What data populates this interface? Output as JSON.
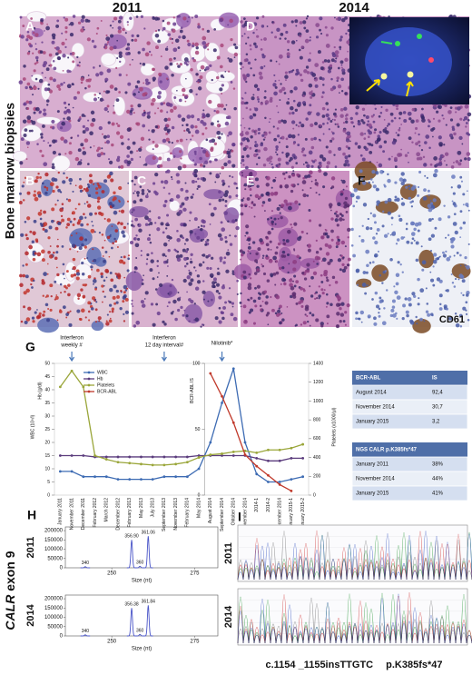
{
  "header": {
    "year_left": "2011",
    "year_right": "2014"
  },
  "side_labels": {
    "biopsies": "Bone marrow biopsies",
    "calr_gene": "CALR",
    "calr_exon": "exon 9"
  },
  "panel_labels": [
    "A",
    "B",
    "C",
    "D",
    "E",
    "F",
    "G",
    "H",
    "I"
  ],
  "stain": "CD61",
  "chart_data": [
    {
      "type": "line",
      "categories": [
        "January 2011",
        "November 2011",
        "December 2011",
        "February 2012",
        "March 2012",
        "December 2012",
        "February 2013",
        "May 2013",
        "July 2013",
        "September 2013",
        "November 2013",
        "February 2014",
        "May 2014",
        "August 2014",
        "September 2014",
        "Oktober 2014",
        "November 2014",
        "2014-1",
        "2014-2",
        "December 2014",
        "January 2015-1",
        "January 2015-2"
      ],
      "series": [
        {
          "name": "WBC",
          "color": "#3d6bb3",
          "values": [
            9,
            9,
            7,
            7,
            7,
            6,
            6,
            6,
            6,
            7,
            7,
            7,
            10,
            20,
            35,
            48,
            20,
            8,
            5,
            5,
            6,
            7
          ]
        },
        {
          "name": "Hb",
          "color": "#5b3c7d",
          "values": [
            15,
            15,
            15,
            14.5,
            14.5,
            14.5,
            14.5,
            14.5,
            14.5,
            14.5,
            14.5,
            14.5,
            15,
            15,
            15,
            15,
            15,
            14,
            13,
            13,
            14,
            14
          ]
        },
        {
          "name": "Platelets",
          "color": "#9aa63a",
          "axis": "y2",
          "values": [
            1150,
            1320,
            1150,
            420,
            380,
            350,
            340,
            330,
            320,
            320,
            330,
            350,
            400,
            430,
            440,
            460,
            470,
            450,
            480,
            480,
            500,
            540
          ]
        },
        {
          "name": "BCR-ABL",
          "color": "#c0392b",
          "axis": "y3",
          "values": [
            null,
            null,
            null,
            null,
            null,
            null,
            null,
            null,
            null,
            null,
            null,
            null,
            null,
            92.4,
            75,
            55,
            30.7,
            22,
            15,
            8,
            3.2,
            null
          ]
        }
      ],
      "ylabels": [
        "WBC (10⁹/l)",
        "Hb (g/dl)"
      ],
      "y2label": "Platelets (x1000/µl)",
      "y3label": "BCR-ABL IS",
      "ylim": [
        0,
        50
      ],
      "yticks": [
        0,
        5,
        10,
        15,
        20,
        25,
        30,
        35,
        40,
        45,
        50
      ],
      "y2lim": [
        0,
        1400
      ],
      "y2ticks": [
        0,
        200,
        400,
        600,
        800,
        1000,
        1200,
        1400
      ],
      "y3lim": [
        0,
        100
      ],
      "y3ticks": [
        0,
        50,
        100
      ],
      "annotations": [
        [
          "Interferon",
          "weekly #"
        ],
        [
          "Interferon",
          "12 day interval#"
        ],
        [
          "Nilotinib*"
        ]
      ],
      "legend": "upper left"
    },
    {
      "type": "line",
      "row": "2011",
      "xlabel": "Size (nt)",
      "xlim": [
        236,
        282
      ],
      "xticks": [
        250,
        275
      ],
      "ylim": [
        0,
        220000
      ],
      "yticks": [
        0,
        50000,
        100000,
        150000,
        200000
      ],
      "peaks": [
        {
          "label": "340",
          "x": 242,
          "height": 6000
        },
        {
          "label": "356.90",
          "x": 256,
          "height": 150000
        },
        {
          "label": "360",
          "x": 258.5,
          "height": 8000
        },
        {
          "label": "361.06",
          "x": 261,
          "height": 170000
        }
      ]
    },
    {
      "type": "line",
      "row": "2014",
      "xlabel": "Size (nt)",
      "xlim": [
        236,
        282
      ],
      "xticks": [
        250,
        275
      ],
      "ylim": [
        0,
        220000
      ],
      "yticks": [
        0,
        50000,
        100000,
        150000,
        200000
      ],
      "peaks": [
        {
          "label": "340",
          "x": 242,
          "height": 6000
        },
        {
          "label": "356.38",
          "x": 256,
          "height": 150000
        },
        {
          "label": "360",
          "x": 258.5,
          "height": 8000
        },
        {
          "label": "361.84",
          "x": 261,
          "height": 165000
        }
      ]
    }
  ],
  "tables": [
    {
      "header": [
        "BCR-ABL",
        "IS"
      ],
      "rows": [
        [
          "August 2014",
          "92,4"
        ],
        [
          "November 2014",
          "30,7"
        ],
        [
          "January 2015",
          "3,2"
        ]
      ]
    },
    {
      "header": [
        "NGS CALR p.K385fs*47"
      ],
      "rows": [
        [
          "January 2011",
          "38%"
        ],
        [
          "November 2014",
          "44%"
        ],
        [
          "January 2015",
          "41%"
        ]
      ]
    }
  ],
  "sequencing": {
    "rows": [
      "2011",
      "2014"
    ],
    "mutation_dna": "c.1154 _1155insTTGTC",
    "mutation_protein": "p.K385fs*47"
  }
}
